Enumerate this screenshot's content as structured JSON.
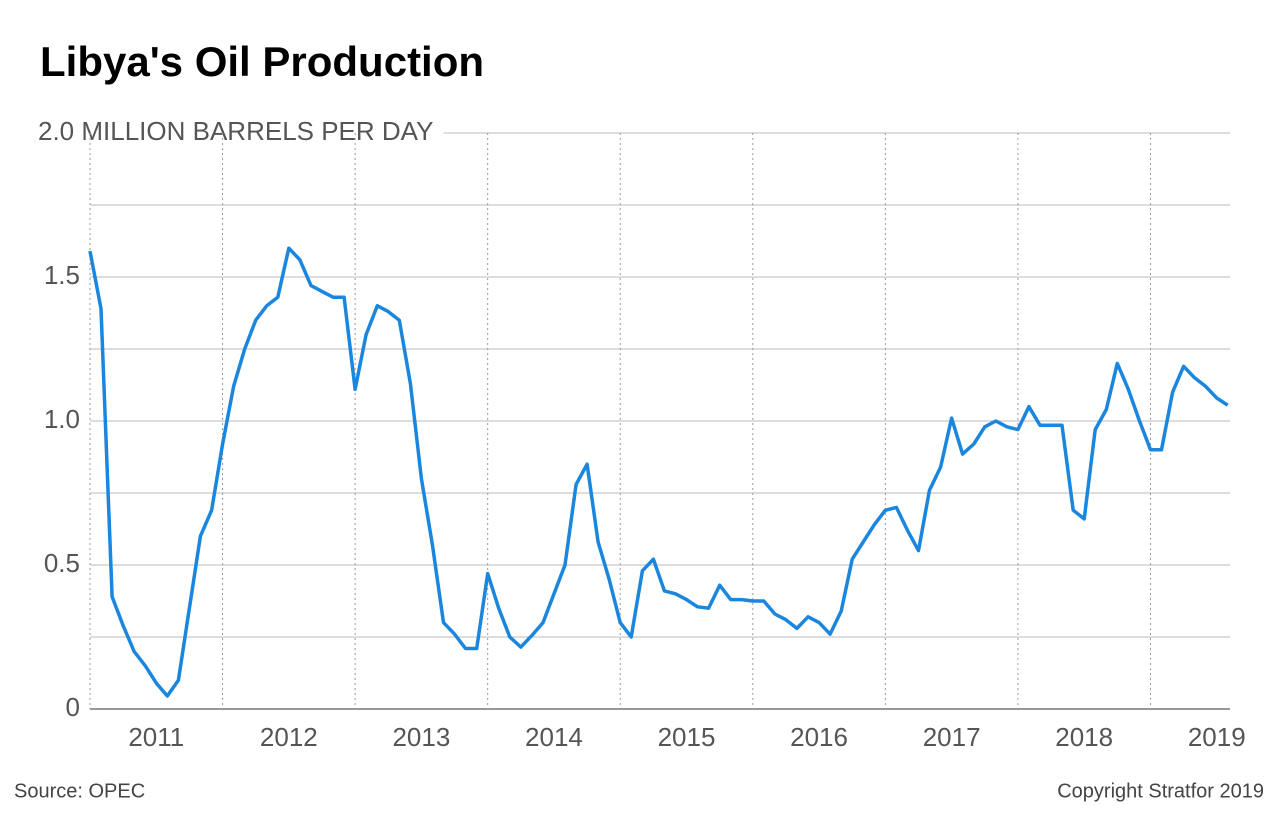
{
  "chart_data": {
    "type": "line",
    "title": "Libya's Oil Production",
    "source": "Source: OPEC",
    "copyright": "Copyright Stratfor 2019",
    "x": [
      2011,
      2011.083,
      2011.167,
      2011.25,
      2011.333,
      2011.417,
      2011.5,
      2011.583,
      2011.667,
      2011.75,
      2011.833,
      2011.917,
      2012,
      2012.083,
      2012.167,
      2012.25,
      2012.333,
      2012.417,
      2012.5,
      2012.583,
      2012.667,
      2012.75,
      2012.833,
      2012.917,
      2013,
      2013.083,
      2013.167,
      2013.25,
      2013.333,
      2013.417,
      2013.5,
      2013.583,
      2013.667,
      2013.75,
      2013.833,
      2013.917,
      2014,
      2014.083,
      2014.167,
      2014.25,
      2014.333,
      2014.417,
      2014.5,
      2014.583,
      2014.667,
      2014.75,
      2014.833,
      2014.917,
      2015,
      2015.083,
      2015.167,
      2015.25,
      2015.333,
      2015.417,
      2015.5,
      2015.583,
      2015.667,
      2015.75,
      2015.833,
      2015.917,
      2016,
      2016.083,
      2016.167,
      2016.25,
      2016.333,
      2016.417,
      2016.5,
      2016.583,
      2016.667,
      2016.75,
      2016.833,
      2016.917,
      2017,
      2017.083,
      2017.167,
      2017.25,
      2017.333,
      2017.417,
      2017.5,
      2017.583,
      2017.667,
      2017.75,
      2017.833,
      2017.917,
      2018,
      2018.083,
      2018.167,
      2018.25,
      2018.333,
      2018.417,
      2018.5,
      2018.583,
      2018.667,
      2018.75,
      2018.833,
      2018.917,
      2019,
      2019.083,
      2019.167,
      2019.25,
      2019.333,
      2019.417,
      2019.5,
      2019.583
    ],
    "series": [
      {
        "color": "#1a86de",
        "values": [
          1.59,
          1.39,
          0.39,
          0.29,
          0.2,
          0.15,
          0.09,
          0.045,
          0.1,
          0.35,
          0.6,
          0.69,
          0.92,
          1.12,
          1.25,
          1.35,
          1.4,
          1.43,
          1.6,
          1.56,
          1.47,
          1.45,
          1.43,
          1.43,
          1.11,
          1.3,
          1.4,
          1.38,
          1.35,
          1.13,
          0.8,
          0.57,
          0.3,
          0.26,
          0.21,
          0.21,
          0.47,
          0.35,
          0.25,
          0.215,
          0.255,
          0.3,
          0.4,
          0.5,
          0.78,
          0.85,
          0.58,
          0.45,
          0.3,
          0.25,
          0.48,
          0.52,
          0.41,
          0.4,
          0.38,
          0.355,
          0.35,
          0.43,
          0.38,
          0.38,
          0.375,
          0.375,
          0.33,
          0.31,
          0.28,
          0.32,
          0.3,
          0.26,
          0.34,
          0.52,
          0.58,
          0.64,
          0.69,
          0.7,
          0.62,
          0.55,
          0.76,
          0.84,
          1.01,
          0.885,
          0.92,
          0.98,
          1.0,
          0.98,
          0.97,
          1.05,
          0.985,
          0.985,
          0.985,
          0.69,
          0.66,
          0.97,
          1.04,
          1.2,
          1.11,
          1.0,
          0.9,
          0.9,
          1.1,
          1.19,
          1.15,
          1.12,
          1.08,
          1.055
        ]
      }
    ],
    "xlim": [
      2011,
      2019.6
    ],
    "xticks": [
      2011,
      2012,
      2013,
      2014,
      2015,
      2016,
      2017,
      2018,
      2019
    ],
    "ylim": [
      0,
      2
    ],
    "yticks": [
      0,
      0.5,
      {
        "value": 1,
        "label": "1.0"
      },
      1.5,
      {
        "value": 2,
        "label": "2.0 MILLION BARRELS PER DAY"
      }
    ],
    "minor_yticks": [
      0.25,
      0.75,
      1.25,
      1.75
    ],
    "grid": true
  }
}
